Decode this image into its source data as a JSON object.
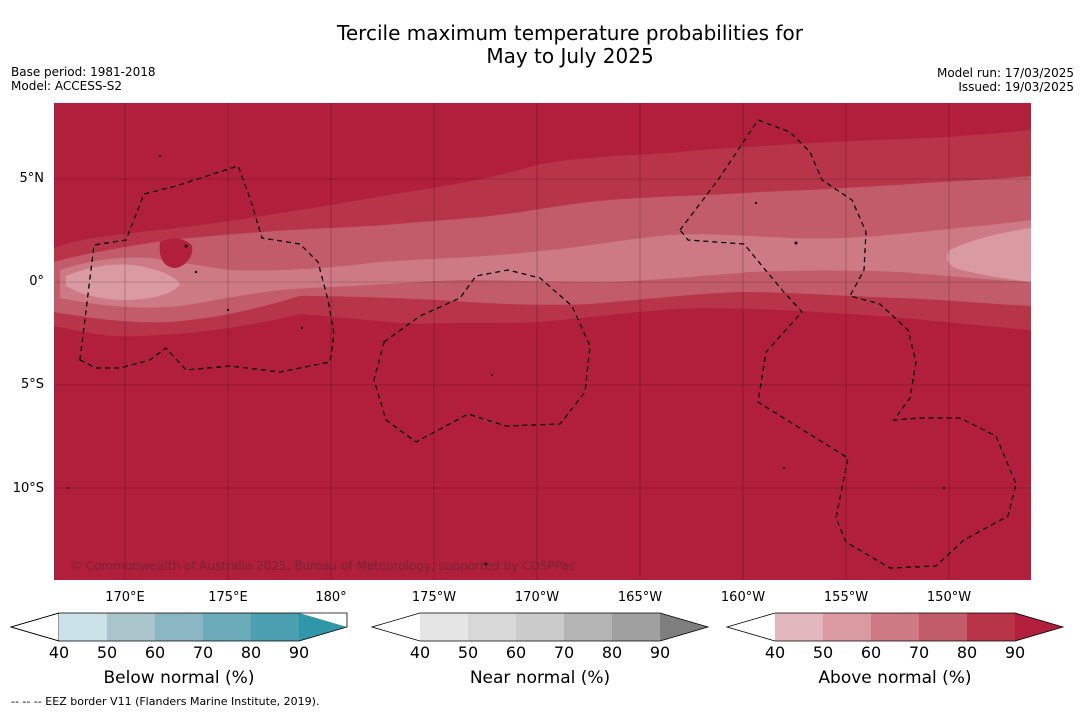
{
  "title_line1": "Tercile maximum temperature probabilities for",
  "title_line2": "May to July 2025",
  "base_period": "Base period: 1981-2018",
  "model": "Model: ACCESS-S2",
  "model_run": "Model run: 17/03/2025",
  "issued": "Issued: 19/03/2025",
  "copyright": "© Commonwealth of Australia 2025, Bureau of Meteorology, supported by COSPPac",
  "footer": "--  --  -- EEZ border V11 (Flanders Marine Institute, 2019).",
  "lat_labels": [
    "5°N",
    "0°",
    "5°S",
    "10°S"
  ],
  "lon_labels": [
    "170°E",
    "175°E",
    "180°",
    "175°W",
    "170°W",
    "165°W",
    "160°W",
    "155°W",
    "150°W"
  ],
  "colorbars": [
    {
      "label": "Below normal (%)",
      "ticks": [
        "40",
        "50",
        "60",
        "70",
        "80",
        "90"
      ],
      "colors": [
        "#ffffff",
        "#c9e1e7",
        "#a9c5cb",
        "#8ab7c2",
        "#6babb9",
        "#4aa0b0",
        "#2e97a8"
      ]
    },
    {
      "label": "Near normal (%)",
      "ticks": [
        "40",
        "50",
        "60",
        "70",
        "80",
        "90"
      ],
      "colors": [
        "#ffffff",
        "#e5e5e5",
        "#d8d8d8",
        "#cbcbcb",
        "#b5b5b5",
        "#a0a0a0",
        "#7e7e7e"
      ]
    },
    {
      "label": "Above normal (%)",
      "ticks": [
        "40",
        "50",
        "60",
        "70",
        "80",
        "90"
      ],
      "colors": [
        "#ffffff",
        "#e2b7bd",
        "#d99aa2",
        "#cd7a84",
        "#c25c6a",
        "#b73449",
        "#b11f3c"
      ]
    }
  ],
  "map_colors": {
    "c90": "#b11f3c",
    "c80": "#b73449",
    "c70": "#c25c6a",
    "c60": "#cd7a84",
    "c50": "#d99aa2"
  }
}
